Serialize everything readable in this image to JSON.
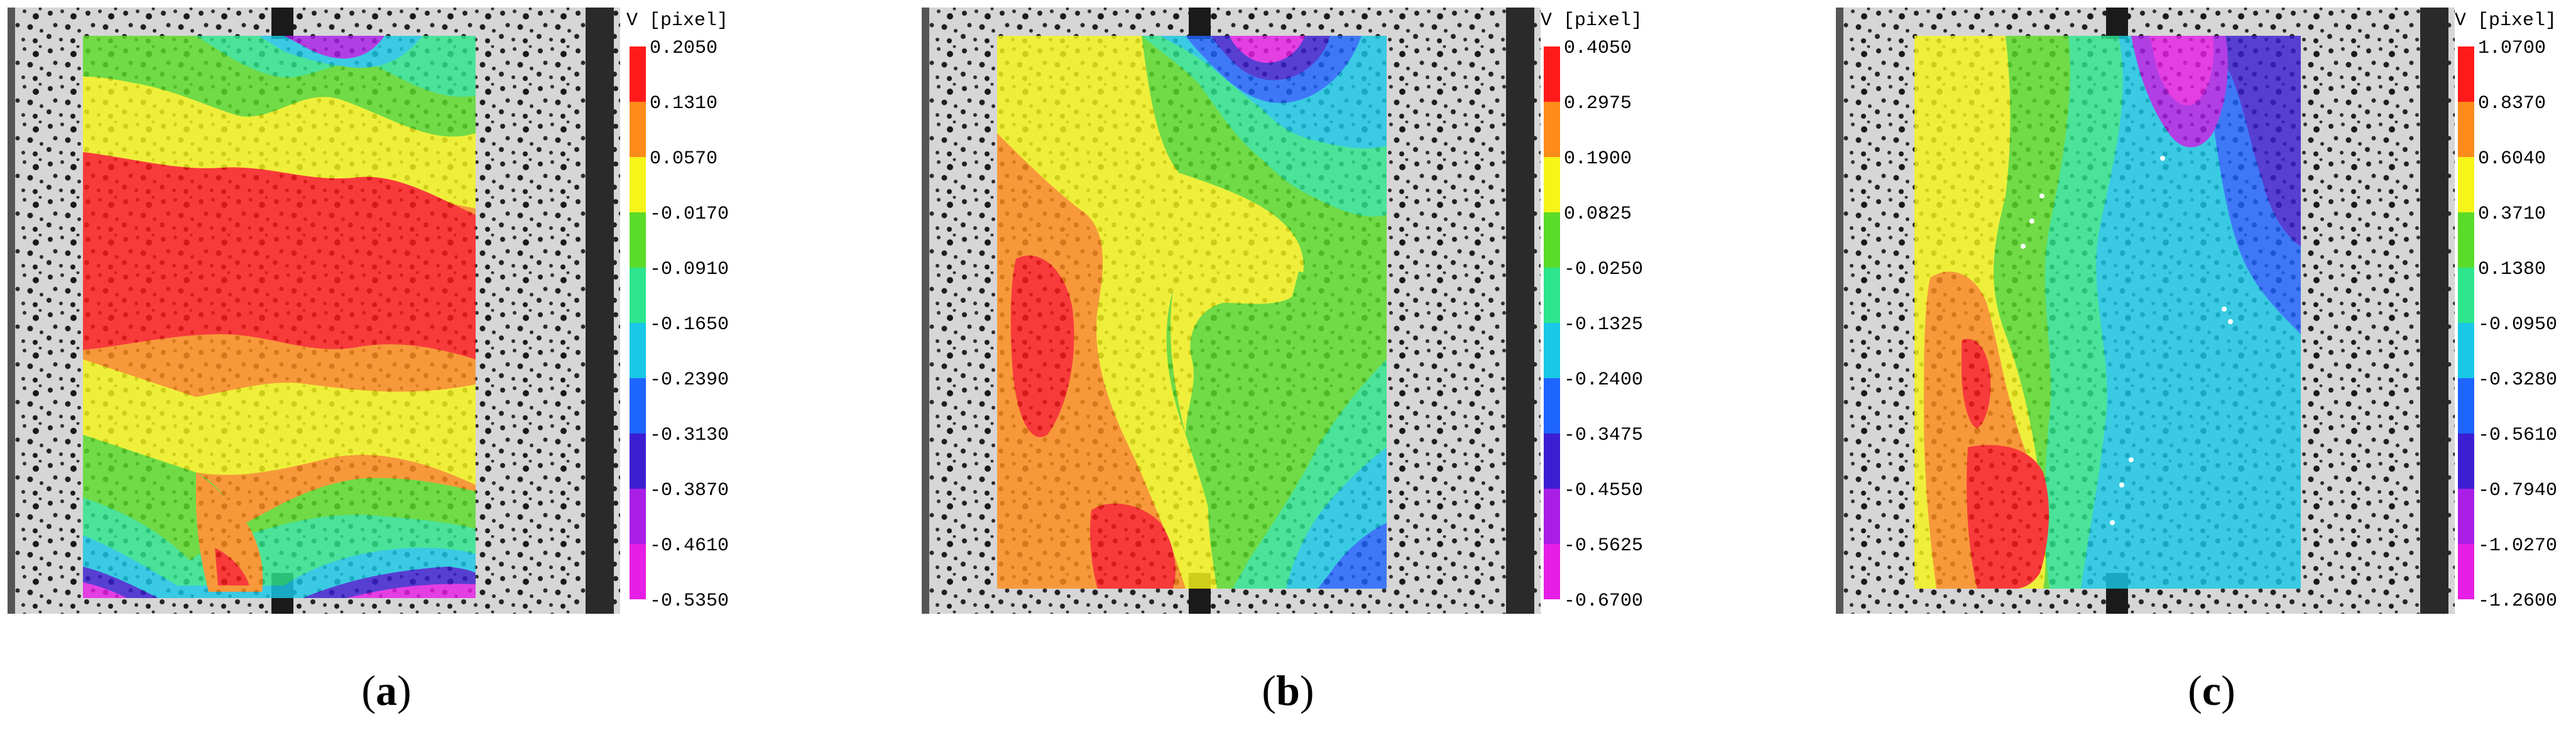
{
  "panels": [
    {
      "id": "a",
      "caption_letter": "a",
      "colorbar_title": "V [pixel]",
      "ticks": [
        "0.2050",
        "0.1310",
        "0.0570",
        "-0.0170",
        "-0.0910",
        "-0.1650",
        "-0.2390",
        "-0.3130",
        "-0.3870",
        "-0.4610",
        "-0.5350"
      ]
    },
    {
      "id": "b",
      "caption_letter": "b",
      "colorbar_title": "V [pixel]",
      "ticks": [
        "0.4050",
        "0.2975",
        "0.1900",
        "0.0825",
        "-0.0250",
        "-0.1325",
        "-0.2400",
        "-0.3475",
        "-0.4550",
        "-0.5625",
        "-0.6700"
      ]
    },
    {
      "id": "c",
      "caption_letter": "c",
      "colorbar_title": "V [pixel]",
      "ticks": [
        "1.0700",
        "0.8370",
        "0.6040",
        "0.3710",
        "0.1380",
        "-0.0950",
        "-0.3280",
        "-0.5610",
        "-0.7940",
        "-1.0270",
        "-1.2600"
      ]
    }
  ],
  "colormap": [
    "#ff1a1a",
    "#ff8c1a",
    "#f5f51a",
    "#5adc28",
    "#2de68c",
    "#19c8e6",
    "#1e64ff",
    "#3c1ed2",
    "#aa1ee6",
    "#e61ee6"
  ],
  "colors": {
    "specimen_bg": "#3a3a3a",
    "speckle_light": "#d8d8d8",
    "grip": "#1a1a1a"
  }
}
